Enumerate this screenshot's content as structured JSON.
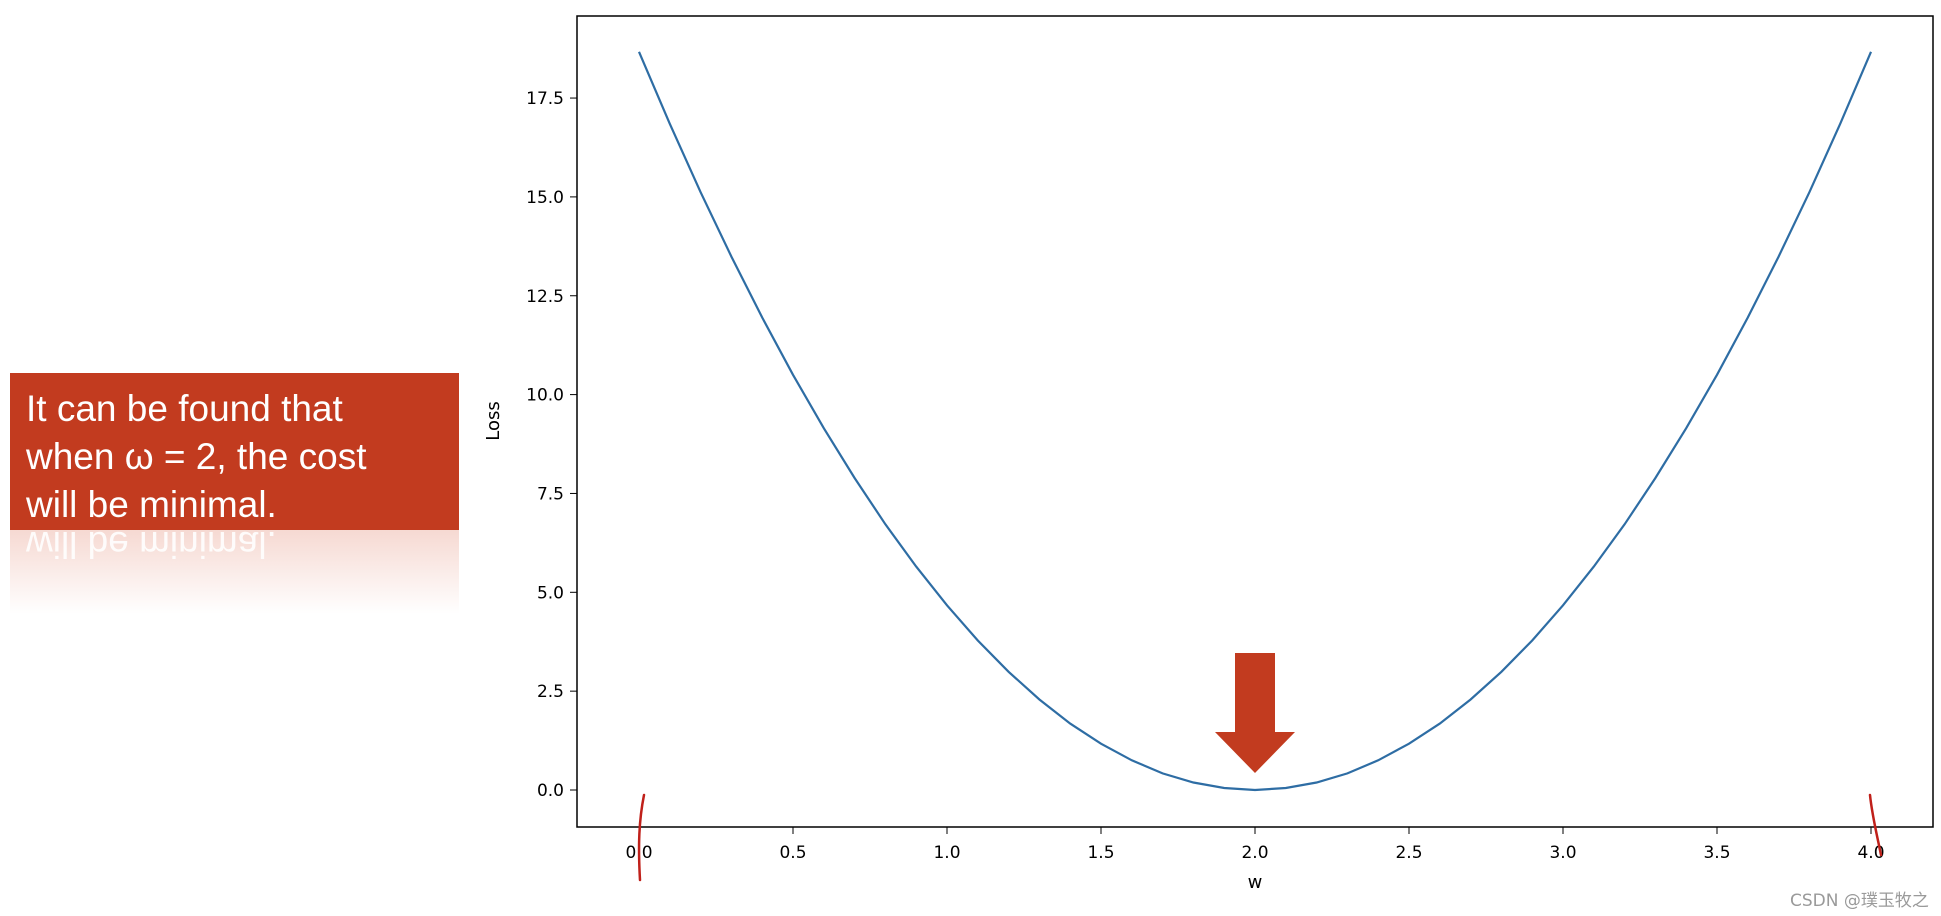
{
  "chart_data": {
    "type": "line",
    "title": "",
    "xlabel": "w",
    "ylabel": "Loss",
    "xlim": [
      -0.2,
      4.2
    ],
    "ylim": [
      -0.93,
      19.6
    ],
    "xticks": [
      "0.0",
      "0.5",
      "1.0",
      "1.5",
      "2.0",
      "2.5",
      "3.0",
      "3.5",
      "4.0"
    ],
    "yticks": [
      "0.0",
      "2.5",
      "5.0",
      "7.5",
      "10.0",
      "12.5",
      "15.0",
      "17.5"
    ],
    "grid": false,
    "series": [
      {
        "color": "#2e6da4",
        "x": [
          0.0,
          0.1,
          0.2,
          0.3,
          0.4,
          0.5,
          0.6,
          0.7,
          0.8,
          0.9,
          1.0,
          1.1,
          1.2,
          1.3,
          1.4,
          1.5,
          1.6,
          1.7,
          1.8,
          1.9,
          2.0,
          2.1,
          2.2,
          2.3,
          2.4,
          2.5,
          2.6,
          2.7,
          2.8,
          2.9,
          3.0,
          3.1,
          3.2,
          3.3,
          3.4,
          3.5,
          3.6,
          3.7,
          3.8,
          3.9,
          4.0
        ],
        "y": [
          18.67,
          16.85,
          15.12,
          13.49,
          11.95,
          10.5,
          9.15,
          7.89,
          6.72,
          5.65,
          4.67,
          3.78,
          2.99,
          2.29,
          1.68,
          1.17,
          0.75,
          0.42,
          0.19,
          0.05,
          0.0,
          0.05,
          0.19,
          0.42,
          0.75,
          1.17,
          1.68,
          2.29,
          2.99,
          3.78,
          4.67,
          5.65,
          6.72,
          7.89,
          9.15,
          10.5,
          11.95,
          13.49,
          15.12,
          16.85,
          18.67
        ]
      }
    ],
    "annotations": {
      "arrow_at": {
        "w": 2.0,
        "loss": 0.0
      },
      "arrow_color": "#c23b1f",
      "hand_marks_at_w": [
        0.0,
        4.0
      ],
      "hand_mark_color": "#c0201a"
    }
  },
  "callout": {
    "line1": "It can be found that",
    "line2": "when ω = 2, the cost",
    "line3": "will be minimal.",
    "color": "#c23b1f"
  },
  "watermark": "CSDN @璞玉牧之"
}
